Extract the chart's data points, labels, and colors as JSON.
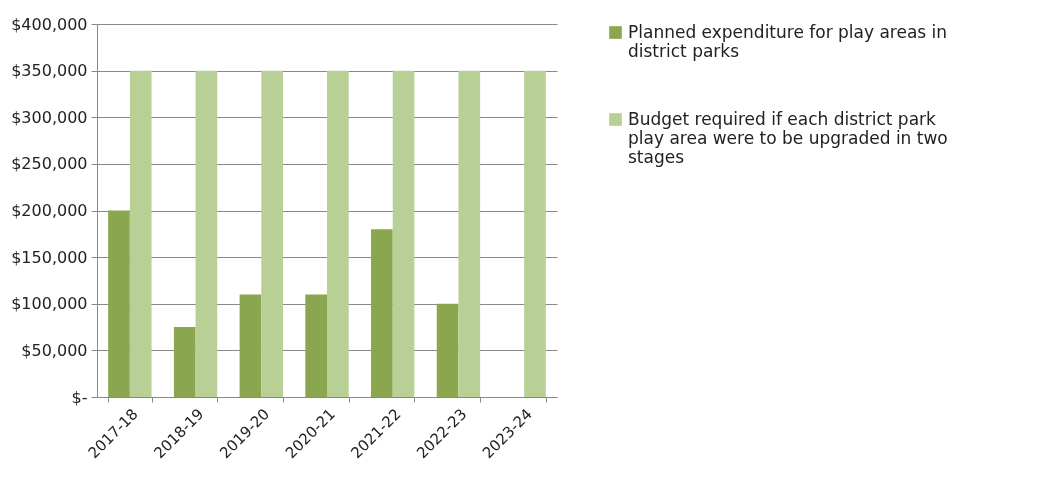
{
  "chart_data": {
    "type": "bar",
    "categories": [
      "2017-18",
      "2018-19",
      "2019-20",
      "2020-21",
      "2021-22",
      "2022-23",
      "2023-24"
    ],
    "series": [
      {
        "name": "Planned expenditure for play areas in district parks",
        "color": "#8aa64e",
        "values": [
          200000,
          75000,
          110000,
          110000,
          180000,
          100000,
          null
        ]
      },
      {
        "name": "Budget required if each district park play area were to be upgraded in two stages",
        "color": "#b8cf95",
        "values": [
          350000,
          350000,
          350000,
          350000,
          350000,
          350000,
          350000
        ]
      }
    ],
    "ylim": [
      0,
      400000
    ],
    "yticks": [
      {
        "value": 0,
        "label": "$-"
      },
      {
        "value": 50000,
        "label": "$50,000"
      },
      {
        "value": 100000,
        "label": "$100,000"
      },
      {
        "value": 150000,
        "label": "$150,000"
      },
      {
        "value": 200000,
        "label": "$200,000"
      },
      {
        "value": 250000,
        "label": "$250,000"
      },
      {
        "value": 300000,
        "label": "$300,000"
      },
      {
        "value": 350000,
        "label": "$350,000"
      },
      {
        "value": 400000,
        "label": "$400,000"
      }
    ],
    "grid": "y",
    "legend": "right"
  }
}
